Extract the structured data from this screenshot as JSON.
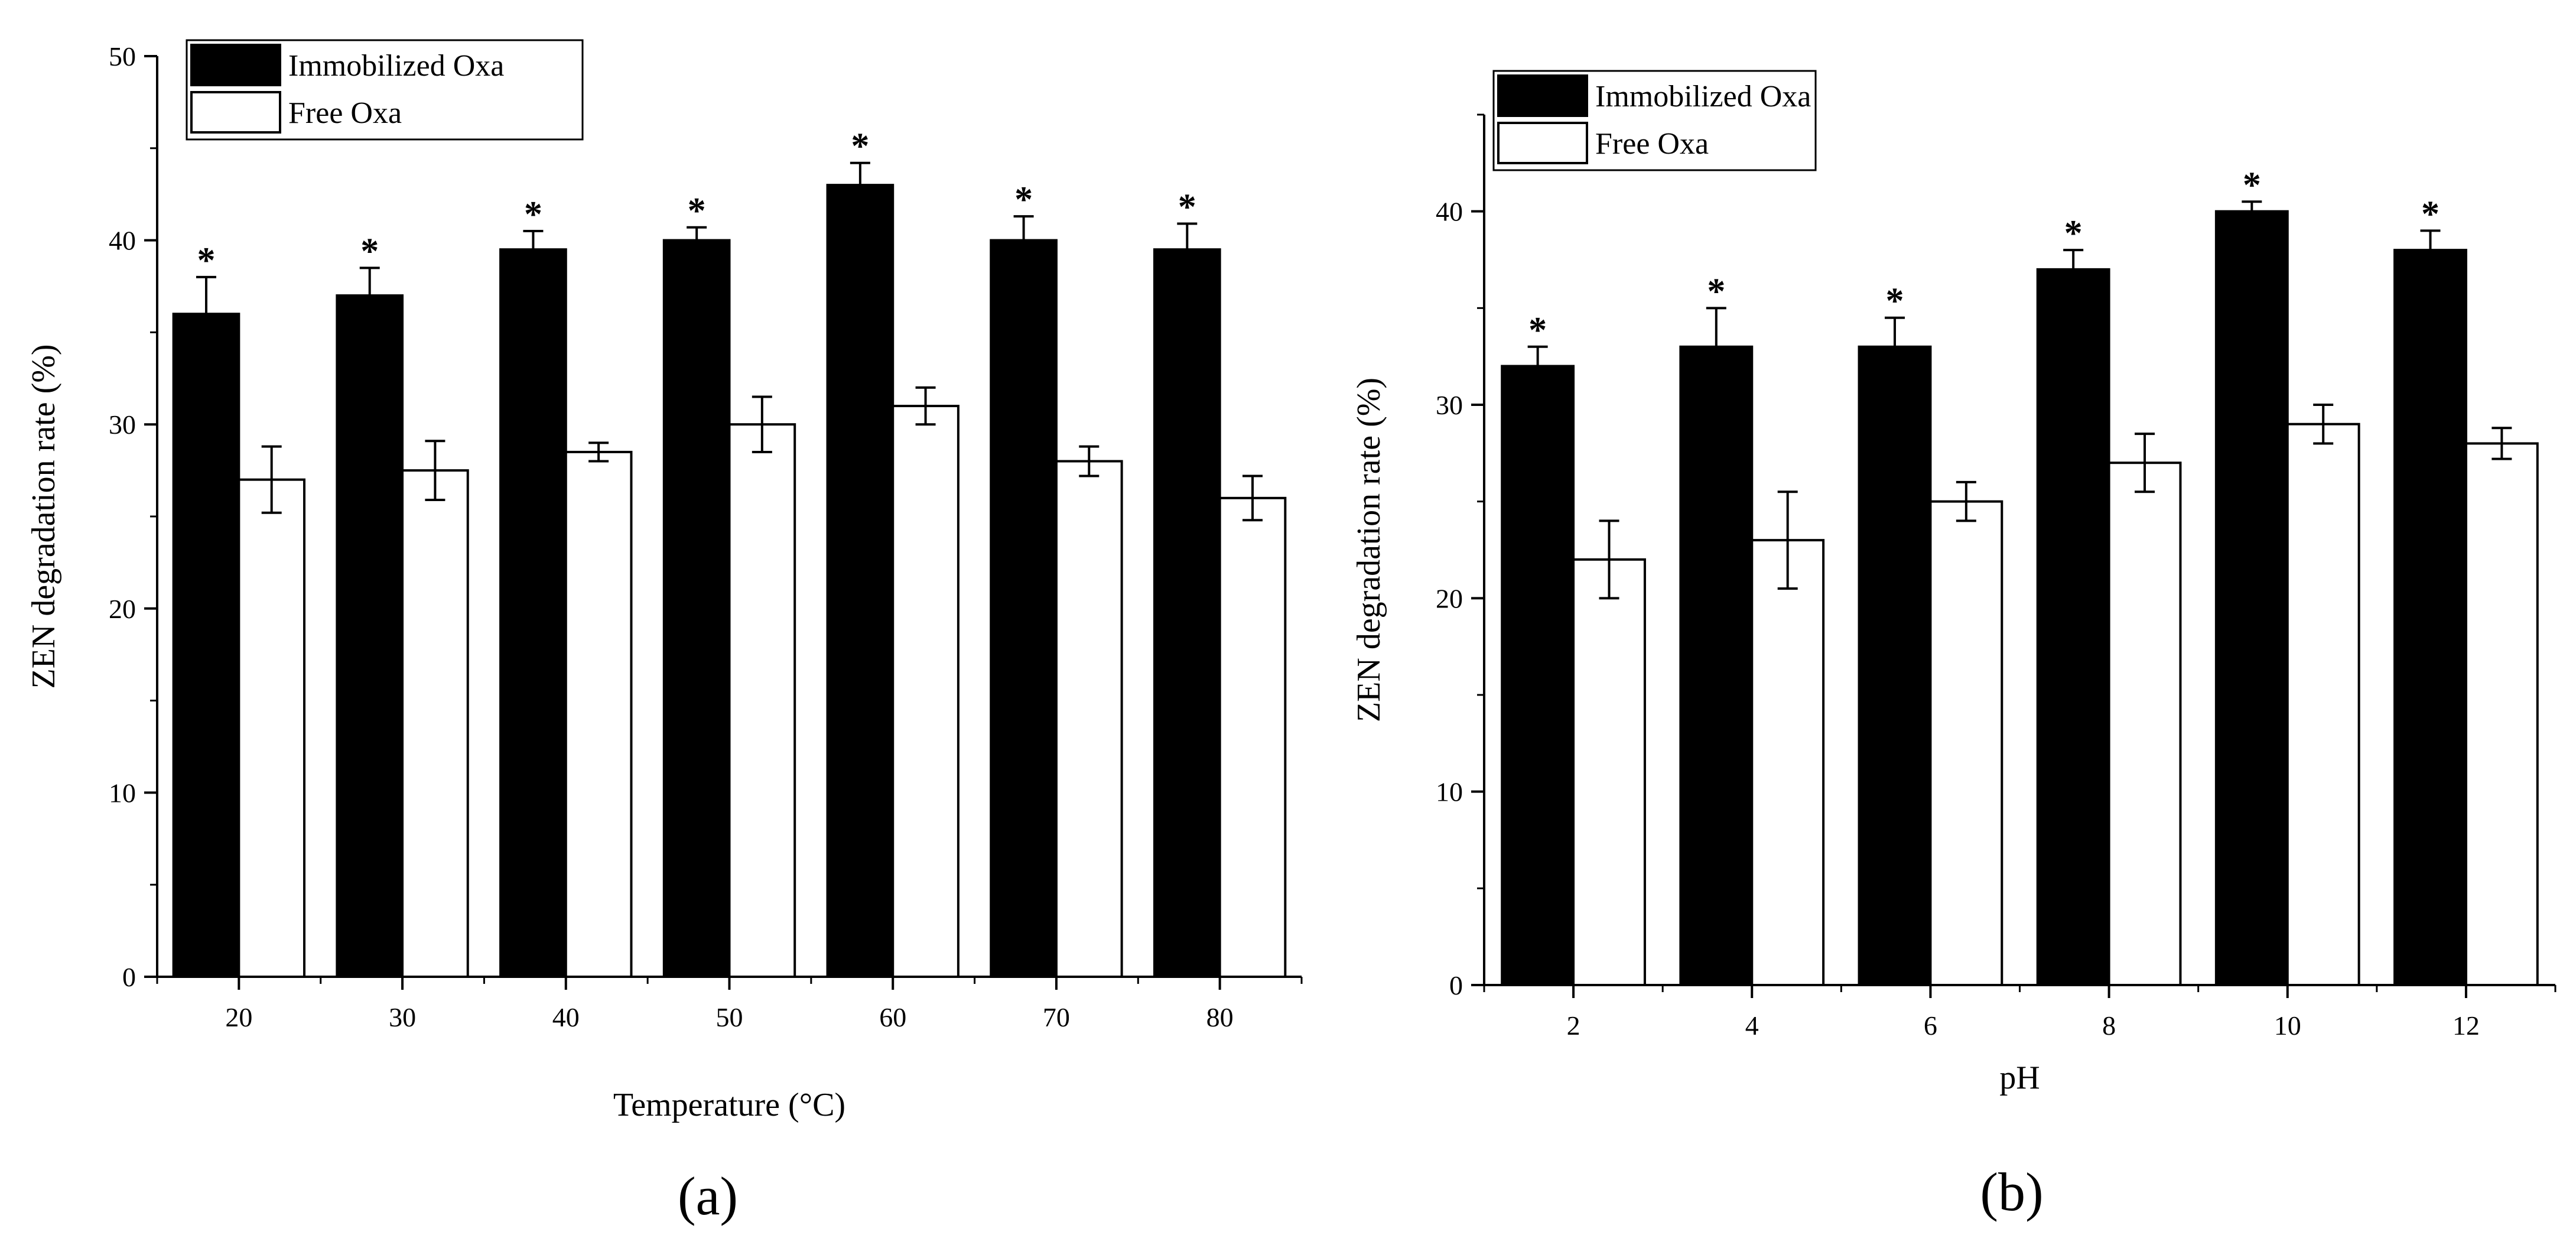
{
  "chart_data": [
    {
      "type": "bar",
      "panel_label": "(a)",
      "xlabel": "Temperature (°C)",
      "ylabel": "ZEN degradation rate (%)",
      "ylim": [
        0,
        50
      ],
      "yticks": [
        "0",
        "10",
        "20",
        "30",
        "40",
        "50"
      ],
      "categories": [
        "20",
        "30",
        "40",
        "50",
        "60",
        "70",
        "80"
      ],
      "legend": {
        "placement": "top-left",
        "entries": [
          "Immobilized Oxa",
          "Free Oxa"
        ]
      },
      "significance_marker": "*",
      "series": [
        {
          "name": "Immobilized Oxa",
          "color": "#000000",
          "values": [
            36,
            37,
            39.5,
            40,
            43,
            40,
            39.5
          ],
          "errors": [
            2.0,
            1.5,
            1.0,
            0.7,
            1.2,
            1.3,
            1.4
          ],
          "significant": [
            true,
            true,
            true,
            true,
            true,
            true,
            true
          ]
        },
        {
          "name": "Free Oxa",
          "color": "#ffffff",
          "values": [
            27,
            27.5,
            28.5,
            30,
            31,
            28,
            26
          ],
          "errors": [
            1.8,
            1.6,
            0.5,
            1.5,
            1.0,
            0.8,
            1.2
          ],
          "significant": [
            false,
            false,
            false,
            false,
            false,
            false,
            false
          ]
        }
      ]
    },
    {
      "type": "bar",
      "panel_label": "(b)",
      "xlabel": "pH",
      "ylabel": "ZEN degradation rate (%)",
      "ylim": [
        0,
        45
      ],
      "yticks": [
        "0",
        "10",
        "20",
        "30",
        "40"
      ],
      "categories": [
        "2",
        "4",
        "6",
        "8",
        "10",
        "12"
      ],
      "legend": {
        "placement": "top-left",
        "entries": [
          "Immobilized Oxa",
          "Free Oxa"
        ]
      },
      "significance_marker": "*",
      "series": [
        {
          "name": "Immobilized Oxa",
          "color": "#000000",
          "values": [
            32,
            33,
            33,
            37,
            40,
            38
          ],
          "errors": [
            1.0,
            2.0,
            1.5,
            1.0,
            0.5,
            1.0
          ],
          "significant": [
            true,
            true,
            true,
            true,
            true,
            true
          ]
        },
        {
          "name": "Free Oxa",
          "color": "#ffffff",
          "values": [
            22,
            23,
            25,
            27,
            29,
            28
          ],
          "errors": [
            2.0,
            2.5,
            1.0,
            1.5,
            1.0,
            0.8
          ],
          "significant": [
            false,
            false,
            false,
            false,
            false,
            false
          ]
        }
      ]
    }
  ]
}
